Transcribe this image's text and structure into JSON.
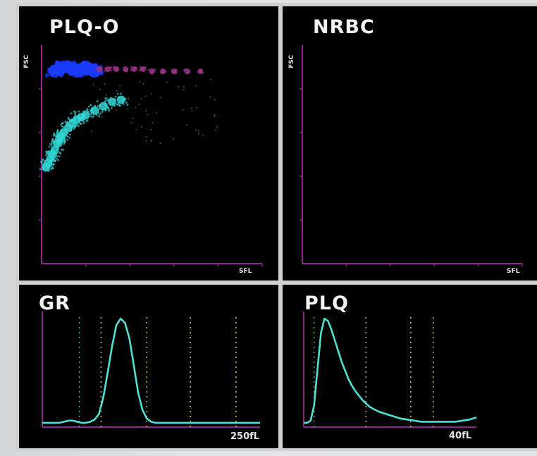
{
  "chart_data": [
    {
      "type": "scatter",
      "title": "PLQ-O",
      "xlabel": "SFL",
      "ylabel": "FSC",
      "series": [
        {
          "color": "#1a3cff",
          "points": [
            [
              6,
              88
            ],
            [
              8,
              89
            ],
            [
              10,
              90
            ],
            [
              12,
              90
            ],
            [
              14,
              89
            ],
            [
              16,
              88
            ],
            [
              18,
              89
            ],
            [
              20,
              90
            ],
            [
              22,
              89
            ],
            [
              24,
              88
            ]
          ]
        },
        {
          "color": "#a0328c",
          "points": [
            [
              26,
              89
            ],
            [
              30,
              89
            ],
            [
              34,
              89
            ],
            [
              38,
              89
            ],
            [
              42,
              89
            ],
            [
              46,
              89
            ],
            [
              50,
              88
            ],
            [
              55,
              88
            ],
            [
              60,
              88
            ],
            [
              66,
              88
            ],
            [
              72,
              88
            ]
          ]
        },
        {
          "color": "#33d6d6",
          "points": [
            [
              2,
              44
            ],
            [
              3,
              46
            ],
            [
              4,
              48
            ],
            [
              5,
              50
            ],
            [
              6,
              52
            ],
            [
              7,
              55
            ],
            [
              8,
              57
            ],
            [
              9,
              58
            ],
            [
              10,
              60
            ],
            [
              12,
              62
            ],
            [
              14,
              64
            ],
            [
              16,
              66
            ],
            [
              18,
              67
            ],
            [
              20,
              68
            ],
            [
              24,
              70
            ],
            [
              28,
              72
            ],
            [
              32,
              74
            ],
            [
              36,
              75
            ]
          ]
        }
      ]
    },
    {
      "type": "scatter",
      "title": "NRBC",
      "xlabel": "SFL",
      "ylabel": "FSC",
      "series": []
    },
    {
      "type": "line",
      "title": "GR",
      "xlabel": "250fL",
      "color": "#4fe0d2",
      "x": [
        0,
        4,
        8,
        10,
        12,
        14,
        16,
        18,
        20,
        22,
        24,
        26,
        28,
        30,
        32,
        34,
        36,
        38,
        40,
        42,
        44,
        46,
        48,
        50,
        52,
        54,
        56,
        58,
        60,
        65,
        70,
        75,
        80,
        85,
        90,
        95,
        100
      ],
      "values": [
        2,
        2,
        2,
        3,
        4,
        4,
        3,
        2,
        2,
        3,
        5,
        10,
        25,
        48,
        72,
        92,
        98,
        94,
        80,
        55,
        30,
        14,
        6,
        3,
        2,
        2,
        2,
        2,
        2,
        2,
        2,
        2,
        2,
        2,
        2,
        2,
        2
      ]
    },
    {
      "type": "line",
      "title": "PLQ",
      "xlabel": "40fL",
      "color": "#4fe0d2",
      "x": [
        0,
        2,
        4,
        6,
        8,
        10,
        12,
        14,
        16,
        18,
        20,
        22,
        24,
        26,
        28,
        30,
        32,
        34,
        36,
        38,
        40,
        44,
        48,
        52,
        56,
        60,
        64,
        68,
        72,
        76,
        80,
        84,
        88,
        92,
        96,
        100
      ],
      "values": [
        2,
        2,
        4,
        18,
        52,
        85,
        98,
        96,
        88,
        78,
        68,
        58,
        50,
        42,
        36,
        31,
        27,
        23,
        20,
        17,
        15,
        12,
        10,
        8,
        6,
        5,
        4,
        3,
        3,
        3,
        3,
        3,
        3,
        4,
        5,
        7
      ]
    }
  ]
}
